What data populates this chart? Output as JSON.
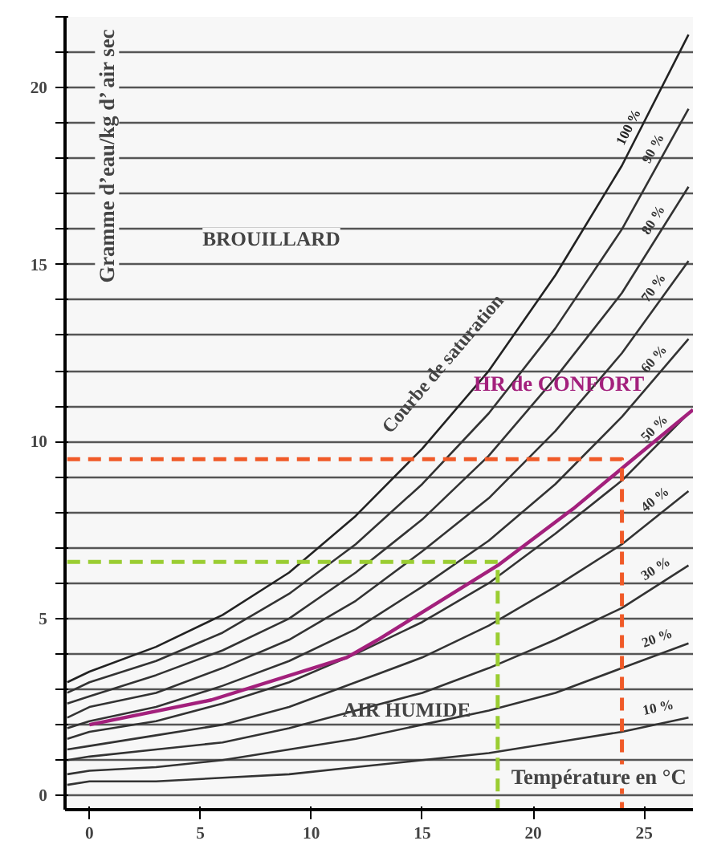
{
  "chart_data": {
    "type": "line",
    "xlabel": "Température en °C",
    "ylabel": "Gramme d’eau/kg d’ air sec",
    "xlim": [
      -1.1,
      27.2
    ],
    "ylim": [
      -0.4,
      22
    ],
    "xticks": [
      0,
      5,
      10,
      15,
      20,
      25
    ],
    "yticks": [
      0,
      {
        "value": 1,
        "label": null
      },
      {
        "value": 2,
        "label": null
      },
      {
        "value": 3,
        "label": null
      },
      {
        "value": 4,
        "label": null
      },
      5,
      {
        "value": 6,
        "label": null
      },
      {
        "value": 7,
        "label": null
      },
      {
        "value": 8,
        "label": null
      },
      {
        "value": 9,
        "label": null
      },
      10,
      {
        "value": 11,
        "label": null
      },
      {
        "value": 12,
        "label": null
      },
      {
        "value": 13,
        "label": null
      },
      {
        "value": 14,
        "label": null
      },
      15,
      {
        "value": 16,
        "label": null
      },
      {
        "value": 17,
        "label": null
      },
      {
        "value": 18,
        "label": null
      },
      {
        "value": 19,
        "label": null
      },
      20,
      {
        "value": 21,
        "label": null
      },
      {
        "value": 22,
        "label": null
      }
    ],
    "grid": "y",
    "x": [
      -1,
      0,
      3,
      6,
      9,
      12,
      15,
      18,
      21,
      24,
      27
    ],
    "series": [
      {
        "name": "10 %",
        "color": "#333333",
        "values": [
          0.3,
          0.4,
          0.4,
          0.5,
          0.6,
          0.8,
          1.0,
          1.2,
          1.5,
          1.8,
          2.2
        ]
      },
      {
        "name": "20 %",
        "color": "#333333",
        "values": [
          0.6,
          0.7,
          0.8,
          1.0,
          1.3,
          1.6,
          2.0,
          2.4,
          2.9,
          3.6,
          4.3
        ]
      },
      {
        "name": "30 %",
        "color": "#333333",
        "values": [
          1.0,
          1.1,
          1.3,
          1.5,
          1.9,
          2.4,
          2.9,
          3.6,
          4.4,
          5.3,
          6.5
        ]
      },
      {
        "name": "40 %",
        "color": "#333333",
        "values": [
          1.3,
          1.4,
          1.7,
          2.0,
          2.5,
          3.2,
          3.9,
          4.8,
          5.9,
          7.1,
          8.6
        ]
      },
      {
        "name": "50 %",
        "color": "#333333",
        "values": [
          1.6,
          1.8,
          2.1,
          2.6,
          3.2,
          4.0,
          4.9,
          6.0,
          7.4,
          8.9,
          10.8
        ]
      },
      {
        "name": "60 %",
        "color": "#333333",
        "values": [
          1.9,
          2.1,
          2.5,
          3.1,
          3.8,
          4.7,
          5.9,
          7.2,
          8.8,
          10.7,
          12.9
        ]
      },
      {
        "name": "70 %",
        "color": "#333333",
        "values": [
          2.2,
          2.5,
          2.9,
          3.6,
          4.4,
          5.5,
          6.9,
          8.4,
          10.3,
          12.5,
          15.1
        ]
      },
      {
        "name": "80 %",
        "color": "#333333",
        "values": [
          2.6,
          2.8,
          3.4,
          4.1,
          5.0,
          6.3,
          7.8,
          9.6,
          11.8,
          14.2,
          17.2
        ]
      },
      {
        "name": "90 %",
        "color": "#333333",
        "values": [
          2.9,
          3.2,
          3.8,
          4.6,
          5.7,
          7.1,
          8.8,
          10.8,
          13.2,
          16.0,
          19.4
        ]
      },
      {
        "name": "100 %",
        "color": "#222222",
        "values": [
          3.2,
          3.5,
          4.2,
          5.1,
          6.3,
          7.9,
          9.8,
          12.0,
          14.7,
          17.8,
          21.5
        ]
      },
      {
        "name": "HR de CONFORT",
        "color": "#a3207c",
        "x": [
          0,
          5.5,
          11.6,
          13,
          18.4,
          21.8,
          24.3,
          27.2
        ],
        "values": [
          2.0,
          2.7,
          3.9,
          4.4,
          6.5,
          8.1,
          9.4,
          10.9
        ]
      },
      {
        "color": "#f05a28",
        "line_style": "dashed",
        "x": [
          -1,
          24,
          24
        ],
        "values": [
          9.5,
          9.5,
          -0.4
        ]
      },
      {
        "color": "#9acd32",
        "line_style": "dashed",
        "x": [
          -1,
          18.4,
          18.4
        ],
        "values": [
          6.6,
          6.6,
          -0.4
        ]
      }
    ],
    "annotations": [
      "BROUILLARD",
      "Courbe de saturation",
      "AIR HUMIDE"
    ]
  }
}
